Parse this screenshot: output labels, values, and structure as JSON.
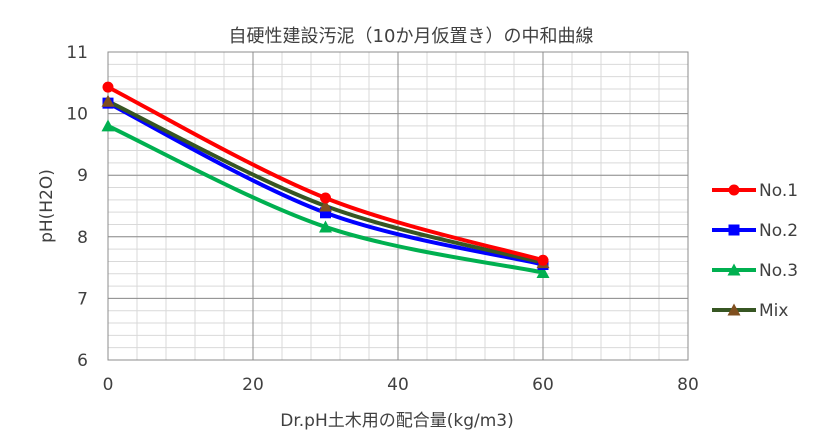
{
  "chart_data": {
    "type": "line",
    "title": "自硬性建設汚泥（10か月仮置き）の中和曲線",
    "xlabel": "Dr.pH土木用の配合量(kg/m3)",
    "ylabel": "pH(H2O)",
    "xlim": [
      0,
      80
    ],
    "ylim": [
      6,
      11
    ],
    "x_ticks": [
      0,
      20,
      40,
      60,
      80
    ],
    "y_ticks": [
      6,
      7,
      8,
      9,
      10,
      11
    ],
    "grid": true,
    "legend_position": "right",
    "series": [
      {
        "name": "No.1",
        "color": "#ff0000",
        "marker": "circle",
        "x": [
          0,
          30,
          60
        ],
        "y": [
          10.43,
          8.63,
          7.62
        ]
      },
      {
        "name": "No.2",
        "color": "#0000ff",
        "marker": "square",
        "x": [
          0,
          30,
          60
        ],
        "y": [
          10.17,
          8.39,
          7.55
        ]
      },
      {
        "name": "No.3",
        "color": "#00b050",
        "marker": "triangle",
        "x": [
          0,
          30,
          60
        ],
        "y": [
          9.8,
          8.16,
          7.42
        ]
      },
      {
        "name": "Mix",
        "color": "#375623",
        "marker": "triangle",
        "marker_color": "#7f4f1f",
        "x": [
          0,
          30,
          60
        ],
        "y": [
          10.2,
          8.5,
          7.58
        ]
      }
    ]
  }
}
